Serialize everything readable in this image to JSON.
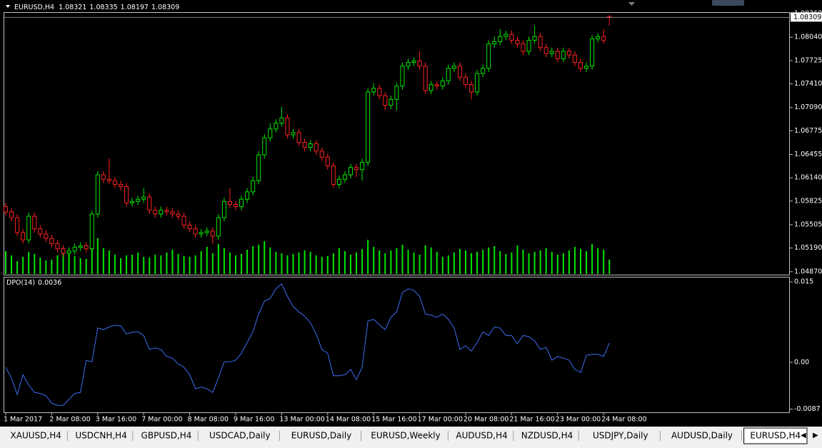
{
  "header": {
    "symbol": "EURUSD,H4"
  },
  "chart_data": [
    {
      "type": "candlestick",
      "bull_color": "#00e600",
      "bear_color": "#ff2020",
      "current_line_color": "#808080",
      "categories": [
        "1 Mar 2017",
        null,
        null,
        null,
        null,
        null,
        null,
        null,
        "2 Mar 08:00",
        null,
        null,
        null,
        null,
        null,
        null,
        null,
        "3 Mar 16:00",
        null,
        null,
        null,
        null,
        null,
        null,
        null,
        "7 Mar 00:00",
        null,
        null,
        null,
        null,
        null,
        null,
        null,
        "8 Mar 08:00",
        null,
        null,
        null,
        null,
        null,
        null,
        null,
        "9 Mar 16:00",
        null,
        null,
        null,
        null,
        null,
        null,
        null,
        "13 Mar 00:00",
        null,
        null,
        null,
        null,
        null,
        null,
        null,
        "14 Mar 08:00",
        null,
        null,
        null,
        null,
        null,
        null,
        null,
        "15 Mar 16:00",
        null,
        null,
        null,
        null,
        null,
        null,
        null,
        "17 Mar 00:00",
        null,
        null,
        null,
        null,
        null,
        null,
        null,
        "20 Mar 08:00",
        null,
        null,
        null,
        null,
        null,
        null,
        null,
        "21 Mar 16:00",
        null,
        null,
        null,
        null,
        null,
        null,
        null,
        "23 Mar 00:00",
        null,
        null,
        null,
        null,
        null,
        null,
        null,
        "24 Mar 08:00",
        null
      ],
      "open": [
        1.0575,
        1.0568,
        1.056,
        1.054,
        1.053,
        1.0562,
        1.0545,
        1.0538,
        1.0532,
        1.0525,
        1.0518,
        1.0512,
        1.0515,
        1.052,
        1.0522,
        1.0518,
        1.0565,
        1.0618,
        1.0612,
        1.061,
        1.0605,
        1.0602,
        1.058,
        1.0582,
        1.0585,
        1.0588,
        1.057,
        1.0565,
        1.057,
        1.0568,
        1.0565,
        1.0562,
        1.055,
        1.0545,
        1.0538,
        1.054,
        1.0542,
        1.0535,
        1.056,
        1.0582,
        1.0578,
        1.0575,
        1.0585,
        1.0595,
        1.061,
        1.0645,
        1.0668,
        1.068,
        1.0688,
        1.0695,
        1.0672,
        1.0675,
        1.0662,
        1.0655,
        1.066,
        1.065,
        1.0642,
        1.063,
        1.0605,
        1.0612,
        1.0618,
        1.0628,
        1.0625,
        1.0635,
        1.073,
        1.0735,
        1.0725,
        1.0712,
        1.072,
        1.0738,
        1.0765,
        1.077,
        1.0772,
        1.0765,
        1.0732,
        1.074,
        1.0738,
        1.0745,
        1.0762,
        1.0765,
        1.075,
        1.074,
        1.073,
        1.0755,
        1.0762,
        1.0795,
        1.0798,
        1.0805,
        1.0808,
        1.08,
        1.0795,
        1.0785,
        1.08,
        1.0805,
        1.079,
        1.0782,
        1.0785,
        1.0775,
        1.0785,
        1.078,
        1.077,
        1.0762,
        1.0765,
        1.0802,
        1.0805,
        1.08321
      ],
      "high": [
        1.058,
        1.0573,
        1.0565,
        1.0545,
        1.0567,
        1.0567,
        1.055,
        1.0543,
        1.0537,
        1.053,
        1.0523,
        1.052,
        1.0525,
        1.0527,
        1.0527,
        1.057,
        1.0623,
        1.0623,
        1.064,
        1.0615,
        1.061,
        1.0607,
        1.0587,
        1.059,
        1.06,
        1.0593,
        1.0575,
        1.0575,
        1.0575,
        1.0573,
        1.057,
        1.0567,
        1.0555,
        1.055,
        1.0545,
        1.0547,
        1.0547,
        1.0565,
        1.0587,
        1.06,
        1.0583,
        1.059,
        1.06,
        1.0615,
        1.065,
        1.0673,
        1.0688,
        1.0693,
        1.071,
        1.07,
        1.068,
        1.068,
        1.0667,
        1.0665,
        1.0665,
        1.0655,
        1.0647,
        1.0635,
        1.0617,
        1.0623,
        1.0633,
        1.0633,
        1.064,
        1.0735,
        1.0742,
        1.074,
        1.073,
        1.0725,
        1.0743,
        1.077,
        1.0775,
        1.0777,
        1.0785,
        1.077,
        1.0745,
        1.0745,
        1.075,
        1.0767,
        1.077,
        1.077,
        1.0755,
        1.0745,
        1.076,
        1.0767,
        1.08,
        1.0805,
        1.0815,
        1.0813,
        1.0813,
        1.0805,
        1.08,
        1.0805,
        1.082,
        1.081,
        1.0795,
        1.079,
        1.079,
        1.079,
        1.079,
        1.0785,
        1.0775,
        1.077,
        1.0807,
        1.081,
        1.0815,
        1.08335
      ],
      "low": [
        1.0563,
        1.0555,
        1.0535,
        1.0525,
        1.0525,
        1.054,
        1.0533,
        1.0527,
        1.052,
        1.0513,
        1.0507,
        1.0507,
        1.051,
        1.0515,
        1.0513,
        1.0513,
        1.056,
        1.0607,
        1.0605,
        1.06,
        1.0597,
        1.0575,
        1.0575,
        1.0577,
        1.058,
        1.0565,
        1.056,
        1.056,
        1.0563,
        1.056,
        1.0557,
        1.0545,
        1.054,
        1.0533,
        1.0533,
        1.0535,
        1.0525,
        1.053,
        1.0555,
        1.0573,
        1.057,
        1.057,
        1.058,
        1.059,
        1.0605,
        1.064,
        1.0663,
        1.0675,
        1.0683,
        1.0667,
        1.0667,
        1.0657,
        1.065,
        1.065,
        1.0645,
        1.0637,
        1.0625,
        1.06,
        1.06,
        1.0607,
        1.0613,
        1.0615,
        1.061,
        1.063,
        1.0725,
        1.072,
        1.0705,
        1.0707,
        1.0705,
        1.0733,
        1.076,
        1.0765,
        1.076,
        1.0727,
        1.0727,
        1.0733,
        1.0733,
        1.074,
        1.0757,
        1.0745,
        1.0735,
        1.072,
        1.0725,
        1.075,
        1.0757,
        1.079,
        1.0793,
        1.08,
        1.0795,
        1.079,
        1.078,
        1.078,
        1.0795,
        1.0785,
        1.0777,
        1.0777,
        1.077,
        1.077,
        1.0775,
        1.0765,
        1.0757,
        1.0757,
        1.076,
        1.0797,
        1.0795,
        1.08197
      ],
      "close": [
        1.0568,
        1.056,
        1.054,
        1.053,
        1.0562,
        1.0545,
        1.0538,
        1.0532,
        1.0525,
        1.0518,
        1.0512,
        1.0515,
        1.052,
        1.0522,
        1.0518,
        1.0565,
        1.0618,
        1.0612,
        1.061,
        1.0605,
        1.0602,
        1.058,
        1.0582,
        1.0585,
        1.0588,
        1.057,
        1.0565,
        1.057,
        1.0568,
        1.0565,
        1.0562,
        1.055,
        1.0545,
        1.0538,
        1.054,
        1.0542,
        1.0535,
        1.056,
        1.0582,
        1.0578,
        1.0575,
        1.0585,
        1.0595,
        1.061,
        1.0645,
        1.0668,
        1.068,
        1.0688,
        1.0695,
        1.0672,
        1.0675,
        1.0662,
        1.0655,
        1.066,
        1.065,
        1.0642,
        1.063,
        1.0605,
        1.0612,
        1.0618,
        1.0628,
        1.0625,
        1.0635,
        1.073,
        1.0735,
        1.0725,
        1.0712,
        1.072,
        1.0738,
        1.0765,
        1.077,
        1.0772,
        1.0765,
        1.0732,
        1.074,
        1.0738,
        1.0745,
        1.0762,
        1.0765,
        1.075,
        1.074,
        1.073,
        1.0755,
        1.0762,
        1.0795,
        1.0798,
        1.0805,
        1.0808,
        1.08,
        1.0795,
        1.0785,
        1.08,
        1.0805,
        1.079,
        1.0782,
        1.0785,
        1.0775,
        1.0785,
        1.078,
        1.077,
        1.0762,
        1.0765,
        1.0802,
        1.0805,
        1.08,
        1.08309
      ],
      "volume": {
        "color": "#00e600",
        "values": [
          3200,
          2600,
          1800,
          2400,
          3100,
          2800,
          2300,
          1900,
          2000,
          2600,
          2900,
          3000,
          2500,
          2200,
          2100,
          4300,
          5000,
          3600,
          3300,
          2700,
          2200,
          2600,
          2700,
          3000,
          2400,
          2300,
          2700,
          2600,
          3000,
          3400,
          2800,
          2500,
          2400,
          2600,
          3200,
          3800,
          2900,
          4200,
          3600,
          3000,
          2600,
          2800,
          3400,
          3900,
          4100,
          4600,
          3700,
          3100,
          2900,
          2600,
          2800,
          3000,
          3300,
          3100,
          2600,
          2400,
          2500,
          2900,
          3600,
          3200,
          2700,
          3000,
          3500,
          4800,
          3800,
          3300,
          2900,
          3300,
          3600,
          4100,
          3400,
          3000,
          2700,
          4000,
          3700,
          3100,
          2400,
          2600,
          3000,
          3500,
          3300,
          2900,
          3100,
          3400,
          3700,
          3900,
          3200,
          2800,
          3000,
          4000,
          3400,
          2900,
          3100,
          3300,
          3600,
          3100,
          2700,
          2900,
          3300,
          3800,
          3500,
          3200,
          4200,
          3600,
          3400,
          2000
        ]
      },
      "ylim": [
        1.0483,
        1.0838
      ],
      "yticks": [
        {
          "value": 1.0836,
          "label": "1.08360"
        },
        {
          "value": 1.0804,
          "label": "1.08040"
        },
        {
          "value": 1.07725,
          "label": "1.07725"
        },
        {
          "value": 1.0741,
          "label": "1.07410"
        },
        {
          "value": 1.0709,
          "label": "1.07090"
        },
        {
          "value": 1.06775,
          "label": "1.06775"
        },
        {
          "value": 1.06455,
          "label": "1.06455"
        },
        {
          "value": 1.0614,
          "label": "1.06140"
        },
        {
          "value": 1.05825,
          "label": "1.05825"
        },
        {
          "value": 1.05505,
          "label": "1.05505"
        },
        {
          "value": 1.0519,
          "label": "1.05190"
        },
        {
          "value": 1.0487,
          "label": "1.04870"
        }
      ]
    },
    {
      "type": "line",
      "name": "DPO(14)",
      "color": "#3d6cf0",
      "values": [
        -0.0009,
        -0.0029,
        -0.006,
        -0.0023,
        -0.0042,
        -0.0056,
        -0.0058,
        -0.0062,
        -0.0076,
        -0.008,
        -0.008,
        -0.0069,
        -0.0058,
        -0.0056,
        0.0004,
        0.0001,
        0.0064,
        0.0061,
        0.0066,
        0.0069,
        0.0068,
        0.0053,
        0.0056,
        0.0057,
        0.005,
        0.0024,
        0.0027,
        0.0024,
        0.0011,
        0.0008,
        -0.0003,
        -0.0009,
        -0.0023,
        -0.0049,
        -0.0046,
        -0.0049,
        -0.0056,
        -0.0029,
        0.0001,
        0.0001,
        0.0004,
        0.0017,
        0.0037,
        0.0057,
        0.009,
        0.0114,
        0.0119,
        0.0137,
        0.0146,
        0.0123,
        0.0104,
        0.0094,
        0.0086,
        0.0074,
        0.0053,
        0.0024,
        0.0017,
        -0.0025,
        -0.0025,
        -0.0023,
        -0.0013,
        -0.0032,
        -0.0009,
        0.0077,
        0.008,
        0.007,
        0.0061,
        0.0084,
        0.0094,
        0.013,
        0.0137,
        0.0134,
        0.0123,
        0.009,
        0.0088,
        0.0084,
        0.009,
        0.008,
        0.0064,
        0.0024,
        0.0031,
        0.0021,
        0.0037,
        0.0057,
        0.005,
        0.0066,
        0.0064,
        0.005,
        0.005,
        0.0035,
        0.005,
        0.0048,
        0.004,
        0.0024,
        0.0028,
        0.0004,
        0.0011,
        0.0008,
        0.0004,
        -0.0013,
        -0.0019,
        0.0013,
        0.0015,
        0.0015,
        0.0011,
        0.0036
      ],
      "ylim": [
        -0.0093,
        0.0158
      ],
      "yticks": [
        0.015,
        {
          "value": 0,
          "label": "0.00"
        },
        -0.0087
      ]
    }
  ],
  "tabs": [
    "XAUUSD,H4",
    "USDCNH,H4",
    "GBPUSD,H4",
    "USDCAD,Daily",
    "EURUSD,Daily",
    "EURUSD,Weekly",
    "AUDUSD,H4",
    "NZDUSD,H4",
    "USDJPY,Daily",
    "AUDUSD,Daily",
    "EURUSD,H4"
  ],
  "active_tab": 10
}
